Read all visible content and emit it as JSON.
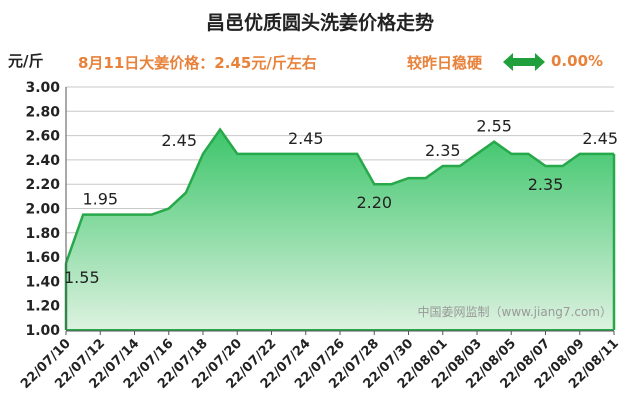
{
  "header": {
    "title": "昌邑优质圆头洗姜价格走势",
    "unit": "元/斤",
    "price_note": "8月11日大姜价格：2.45元/斤左右",
    "trend_label": "较昨日稳硬",
    "trend_icon": "double-arrow-icon",
    "trend_pct": "0.00%"
  },
  "watermark": "中国姜网监制（www.jiang7.com）",
  "colors": {
    "line": "#27a84a",
    "fill_top": "#3cc56a",
    "fill_bottom": "#ddf2e0",
    "accent": "#e8823a",
    "arrow": "#1fa03c"
  },
  "chart_data": {
    "type": "area",
    "title": "昌邑优质圆头洗姜价格走势",
    "ylabel": "元/斤",
    "ylim": [
      1.0,
      3.0
    ],
    "yticks": [
      "1.00",
      "1.20",
      "1.40",
      "1.60",
      "1.80",
      "2.00",
      "2.20",
      "2.40",
      "2.60",
      "2.80",
      "3.00"
    ],
    "xtick_labels": [
      "22/07/10",
      "22/07/12",
      "22/07/14",
      "22/07/16",
      "22/07/18",
      "22/07/20",
      "22/07/22",
      "22/07/24",
      "22/07/26",
      "22/07/28",
      "22/07/30",
      "22/08/01",
      "22/08/03",
      "22/08/05",
      "22/08/07",
      "22/08/09",
      "22/08/11"
    ],
    "x": [
      "22/07/10",
      "22/07/11",
      "22/07/12",
      "22/07/13",
      "22/07/14",
      "22/07/15",
      "22/07/16",
      "22/07/17",
      "22/07/18",
      "22/07/19",
      "22/07/20",
      "22/07/21",
      "22/07/22",
      "22/07/23",
      "22/07/24",
      "22/07/25",
      "22/07/26",
      "22/07/27",
      "22/07/28",
      "22/07/29",
      "22/07/30",
      "22/07/31",
      "22/08/01",
      "22/08/02",
      "22/08/03",
      "22/08/04",
      "22/08/05",
      "22/08/06",
      "22/08/07",
      "22/08/08",
      "22/08/09",
      "22/08/10",
      "22/08/11"
    ],
    "values": [
      1.55,
      1.95,
      1.95,
      1.95,
      1.95,
      1.95,
      2.0,
      2.13,
      2.45,
      2.65,
      2.45,
      2.45,
      2.45,
      2.45,
      2.45,
      2.45,
      2.45,
      2.45,
      2.2,
      2.2,
      2.25,
      2.25,
      2.35,
      2.35,
      2.45,
      2.55,
      2.45,
      2.45,
      2.35,
      2.35,
      2.45,
      2.45,
      2.45
    ],
    "data_labels": [
      {
        "index": 0,
        "text": "1.55",
        "pos": "below"
      },
      {
        "index": 2,
        "text": "1.95",
        "pos": "above"
      },
      {
        "index": 8,
        "text": "2.45",
        "pos": "left"
      },
      {
        "index": 14,
        "text": "2.45",
        "pos": "above"
      },
      {
        "index": 18,
        "text": "2.20",
        "pos": "below"
      },
      {
        "index": 22,
        "text": "2.35",
        "pos": "above"
      },
      {
        "index": 25,
        "text": "2.55",
        "pos": "above"
      },
      {
        "index": 28,
        "text": "2.35",
        "pos": "below"
      },
      {
        "index": 32,
        "text": "2.45",
        "pos": "above"
      }
    ],
    "grid": true
  }
}
